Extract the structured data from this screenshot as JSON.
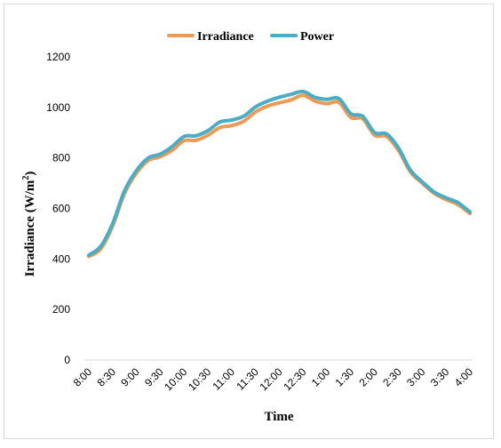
{
  "chart_data": {
    "type": "line",
    "title": "",
    "xlabel": "Time",
    "ylabel_main": "Irradiance (W/m",
    "ylabel_sup": "2",
    "ylabel_close": ")",
    "ylim": [
      0,
      1200
    ],
    "y_ticks": [
      0,
      200,
      400,
      600,
      800,
      1000,
      1200
    ],
    "x_tick_labels": [
      "8:00",
      "8:30",
      "9:00",
      "9:30",
      "10:00",
      "10:30",
      "11:00",
      "11:30",
      "12:00",
      "12:30",
      "1:00",
      "1:30",
      "2:00",
      "2:30",
      "3:00",
      "3:30",
      "4:00"
    ],
    "legend_position": "top-center",
    "grid": false,
    "series": [
      {
        "name": "Irradiance",
        "color": "#ed9a55",
        "values": [
          410,
          440,
          530,
          660,
          740,
          790,
          805,
          830,
          868,
          870,
          890,
          920,
          928,
          945,
          982,
          1005,
          1018,
          1030,
          1048,
          1025,
          1015,
          1020,
          960,
          955,
          890,
          885,
          830,
          745,
          700,
          660,
          635,
          615,
          580
        ]
      },
      {
        "name": "Power",
        "color": "#4aacc5",
        "values": [
          415,
          450,
          540,
          670,
          750,
          800,
          815,
          845,
          885,
          888,
          908,
          942,
          950,
          965,
          1002,
          1025,
          1040,
          1052,
          1063,
          1040,
          1032,
          1035,
          975,
          965,
          900,
          895,
          840,
          752,
          705,
          665,
          642,
          623,
          586
        ]
      }
    ]
  }
}
